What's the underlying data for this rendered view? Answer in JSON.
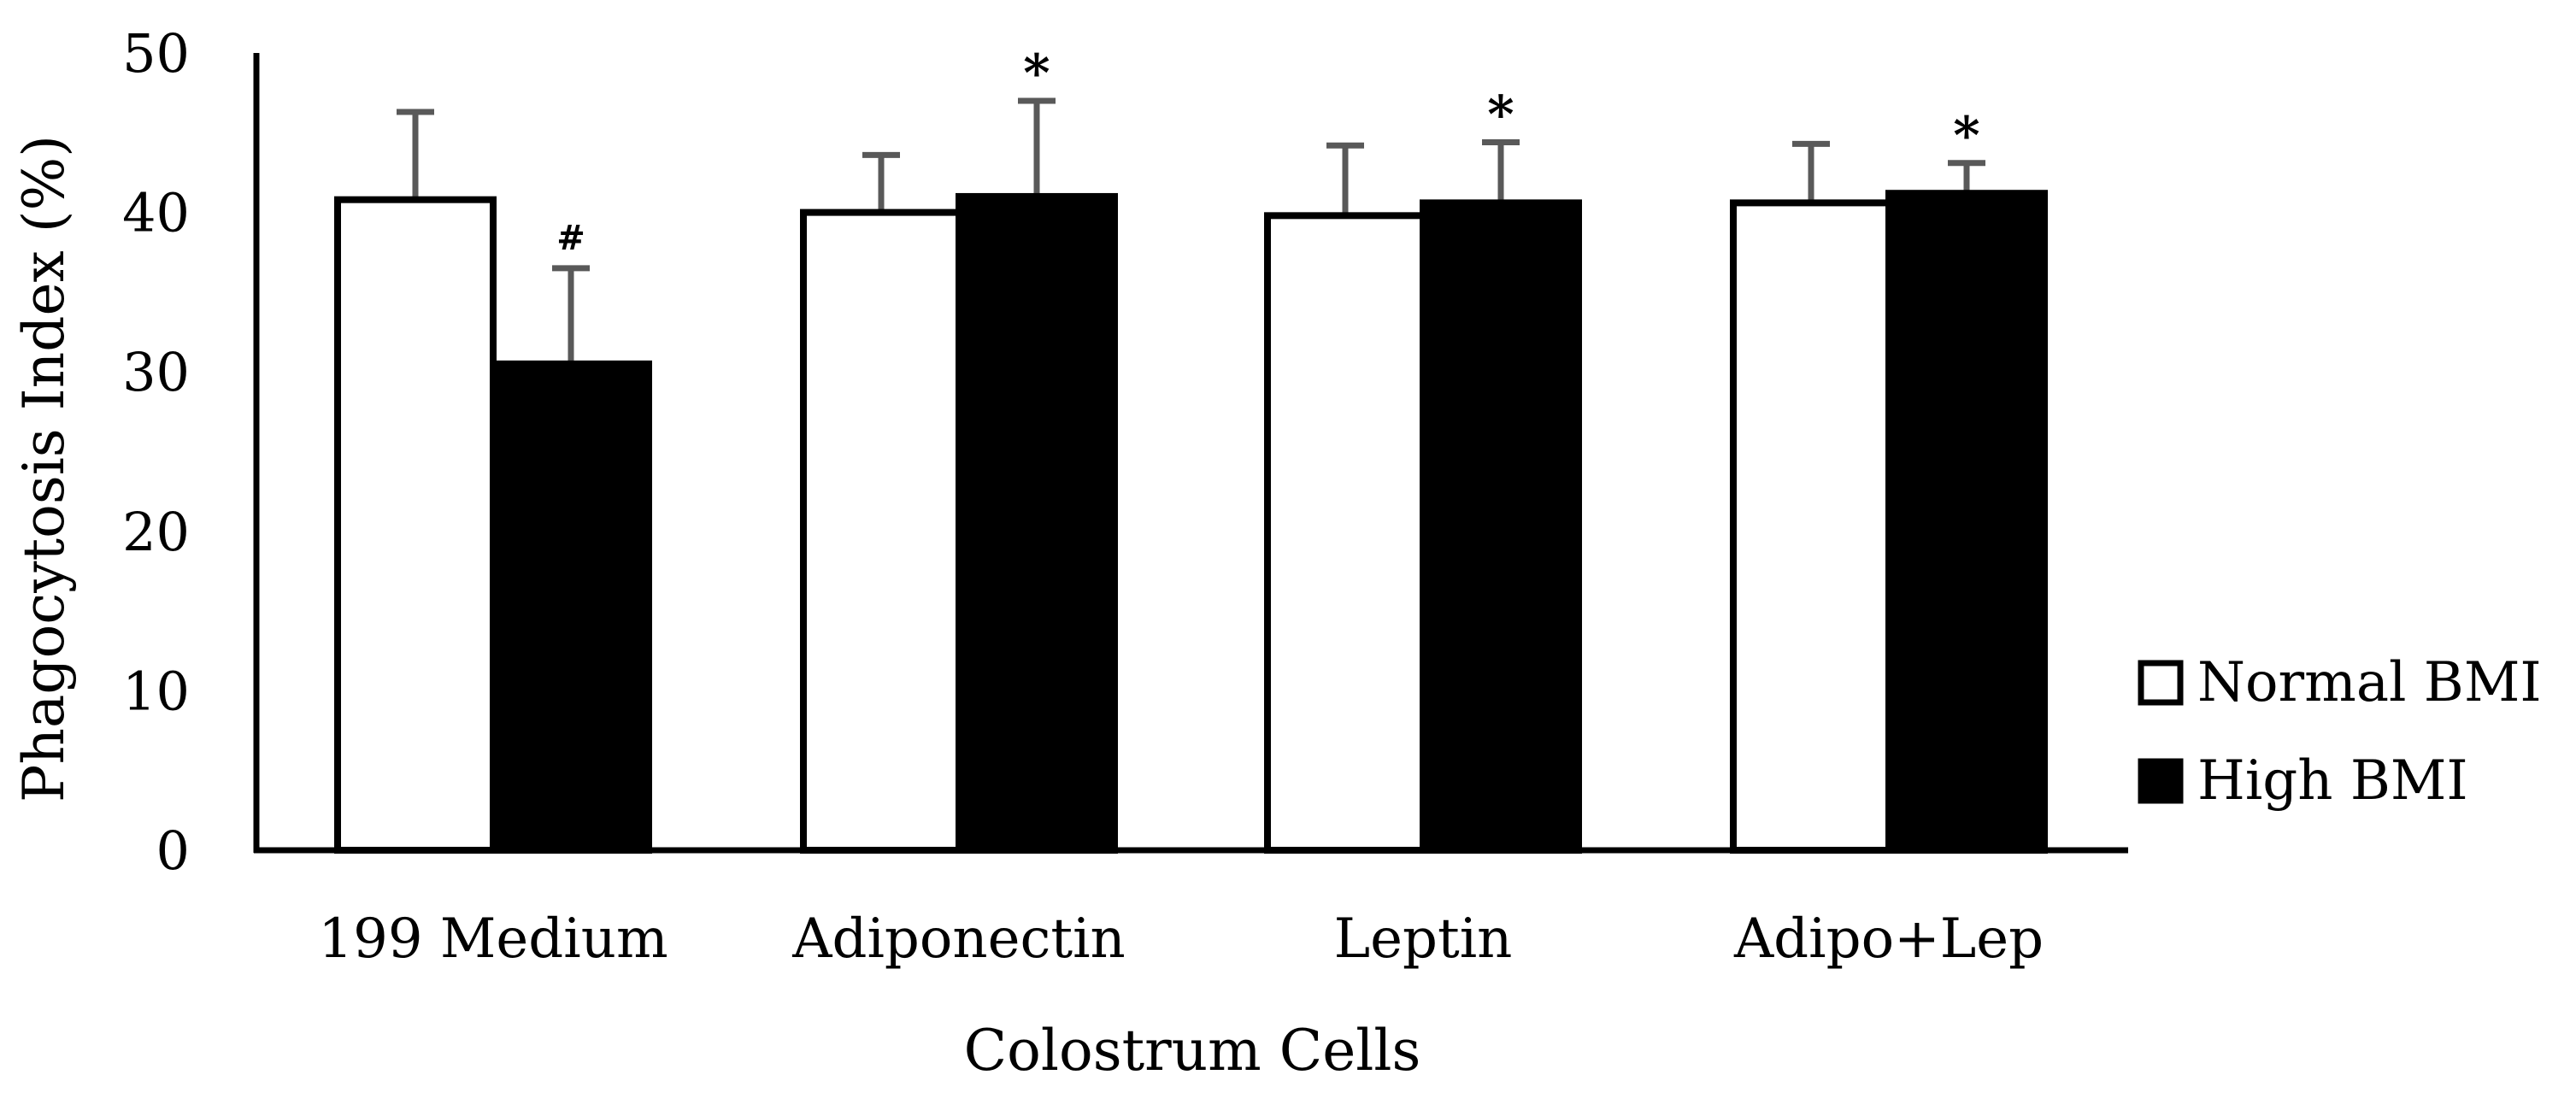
{
  "chart_data": {
    "type": "bar",
    "title": "",
    "xlabel": "Colostrum Cells",
    "ylabel": "Phagocytosis Index (%)",
    "ylim": [
      0,
      50
    ],
    "yticks": [
      0,
      10,
      20,
      30,
      40,
      50
    ],
    "ytick_labels": [
      "0",
      "10",
      "20",
      "30",
      "40",
      "50"
    ],
    "categories": [
      "199 Medium",
      "Adiponectin",
      "Leptin",
      "Adipo+Lep"
    ],
    "series": [
      {
        "name": "Normal BMI",
        "fill": "#ffffff",
        "values": [
          40.8,
          40.0,
          39.8,
          40.6
        ],
        "error_upper": [
          5.5,
          3.6,
          4.4,
          3.7
        ]
      },
      {
        "name": "High BMI",
        "fill": "#000000",
        "values": [
          30.5,
          41.0,
          40.6,
          41.2
        ],
        "error_upper": [
          6.0,
          6.0,
          3.8,
          1.9
        ]
      }
    ],
    "annotations": [
      {
        "category": "199 Medium",
        "series": "High BMI",
        "text": "#"
      },
      {
        "category": "Adiponectin",
        "series": "High BMI",
        "text": "*"
      },
      {
        "category": "Leptin",
        "series": "High BMI",
        "text": "*"
      },
      {
        "category": "Adipo+Lep",
        "series": "High BMI",
        "text": "*"
      }
    ],
    "legend_position": "right",
    "grid": false
  },
  "colors": {
    "axis": "#000000",
    "error_bar": "#595959",
    "bar_edge": "#000000"
  }
}
